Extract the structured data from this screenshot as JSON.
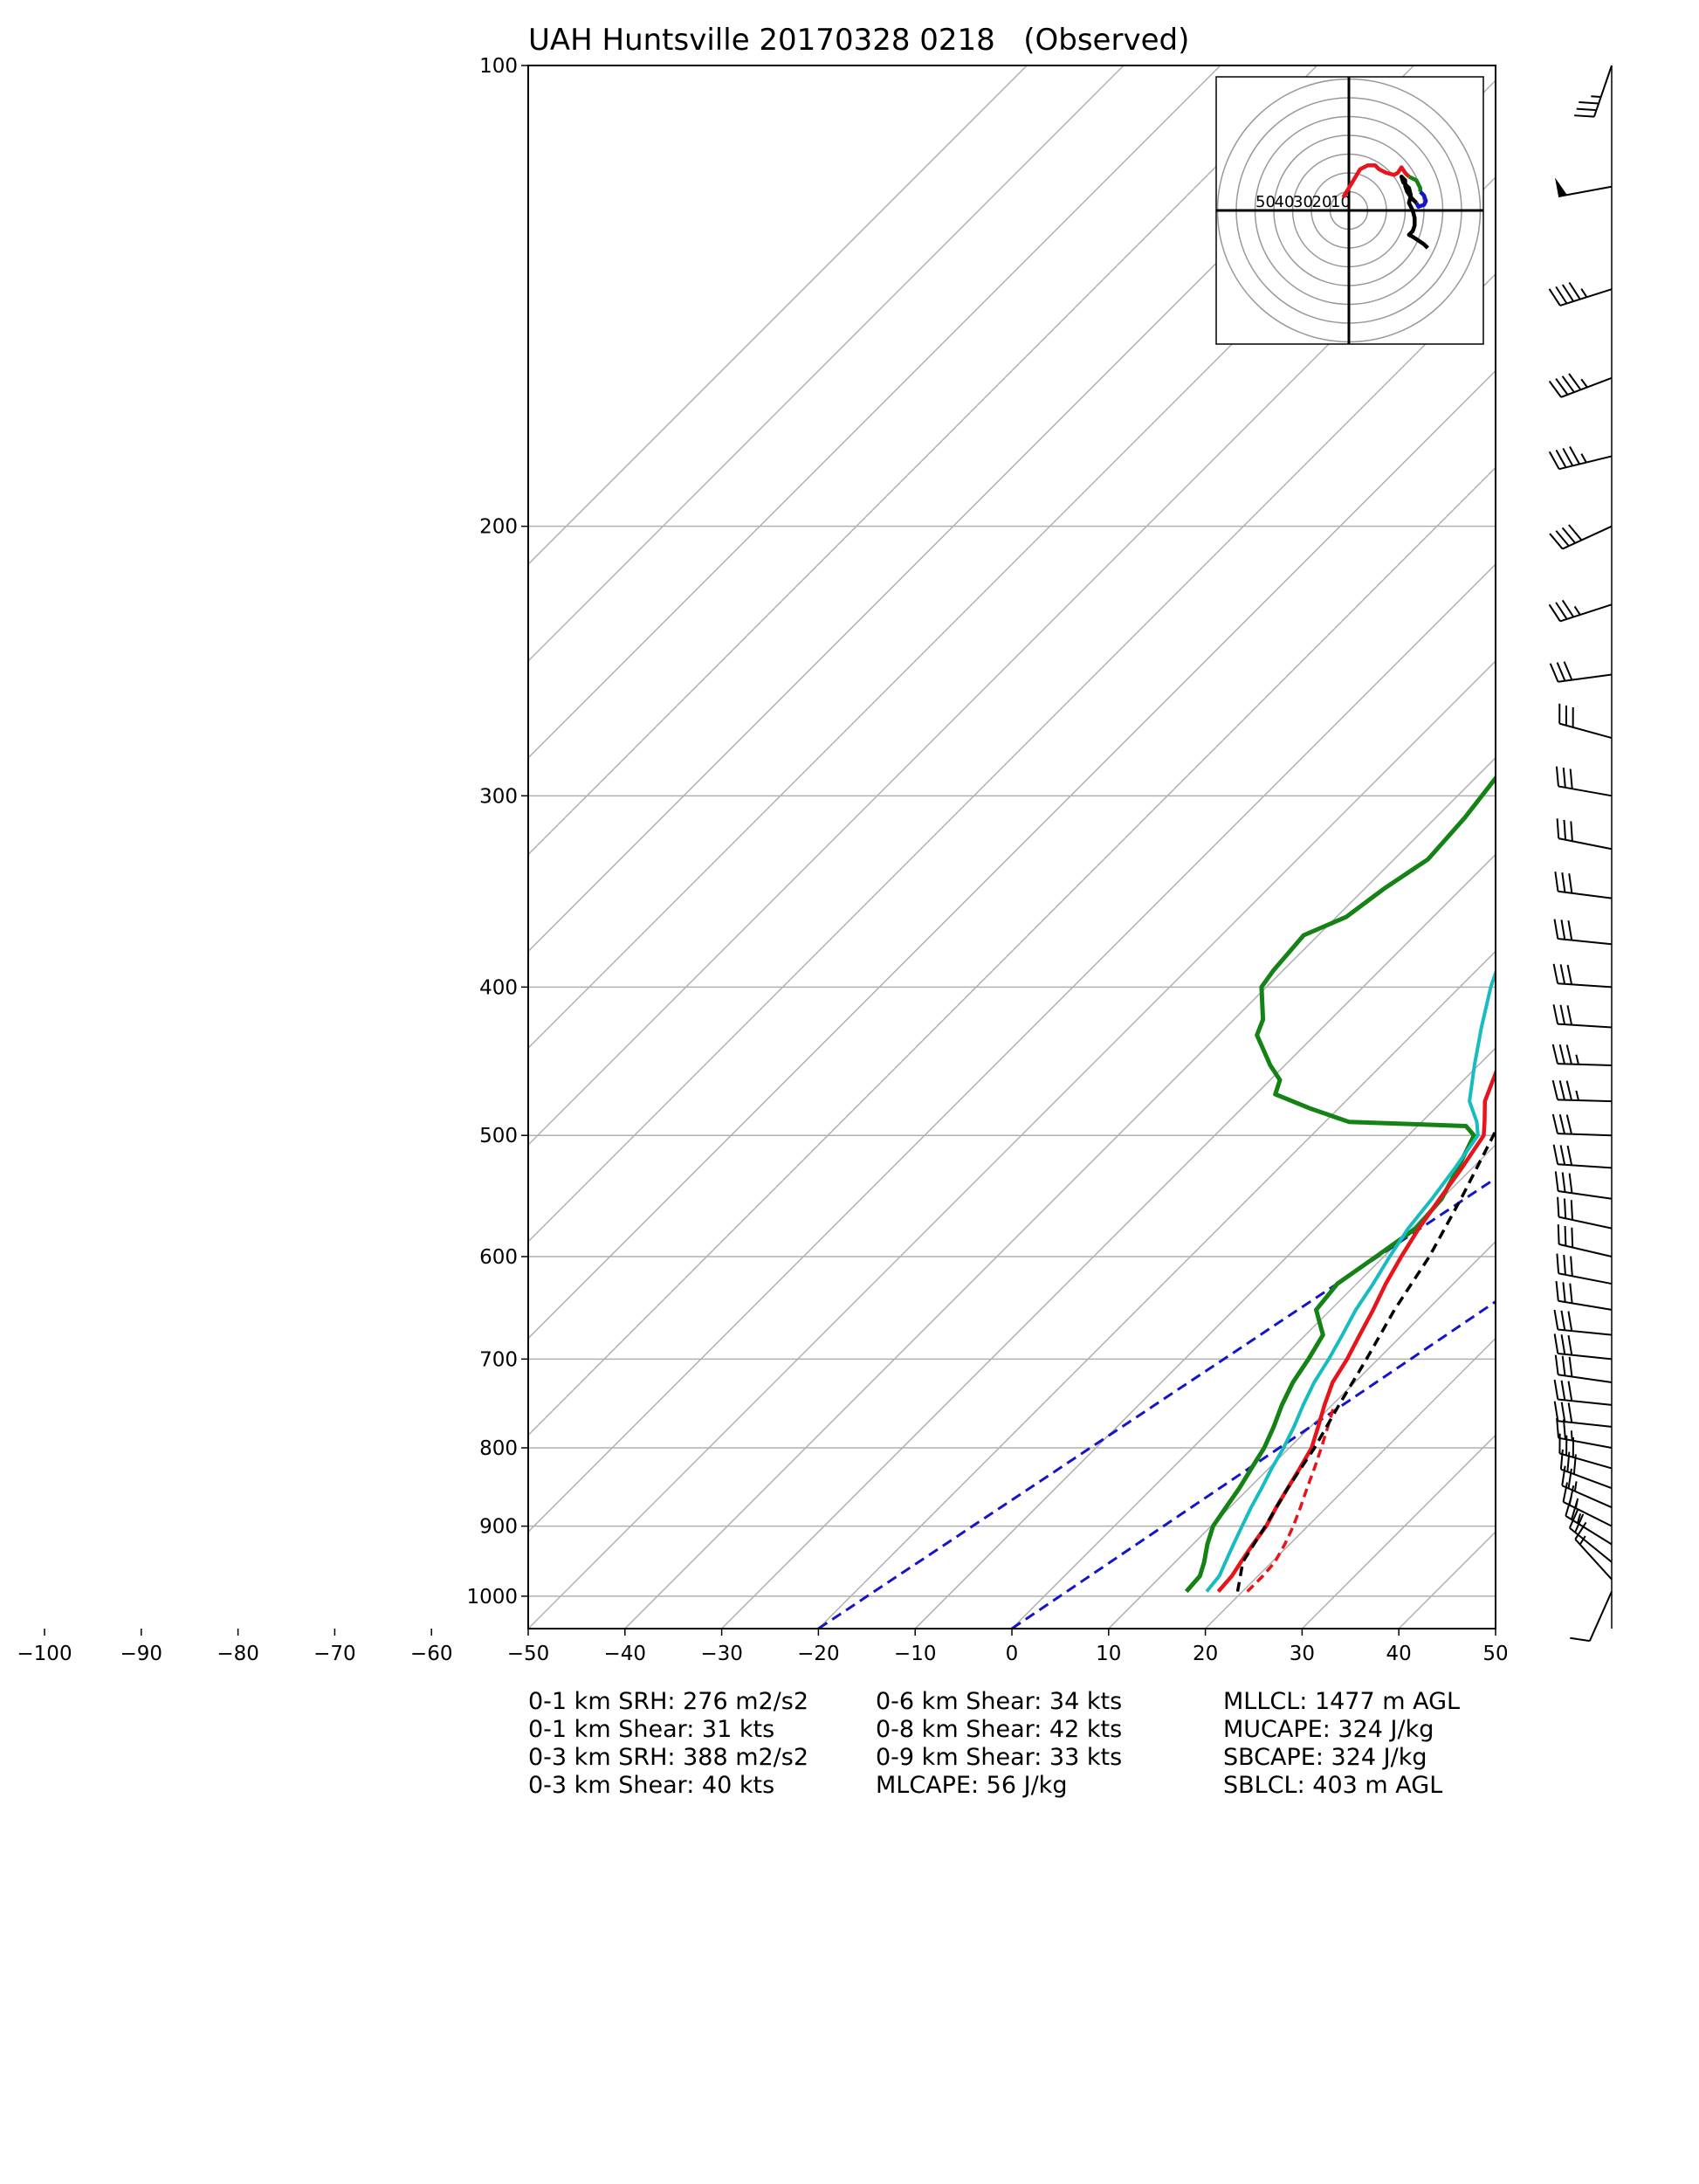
{
  "title": "UAH Huntsville 20170328 0218   (Observed)",
  "chart_data": {
    "type": "line",
    "subtype": "skew-T log-p sounding",
    "x_ticks": [
      -100,
      -90,
      -80,
      -70,
      -60,
      -50,
      -40,
      -30,
      -20,
      -10,
      0,
      10,
      20,
      30,
      40,
      50
    ],
    "y_ticks": [
      100,
      200,
      300,
      400,
      500,
      600,
      700,
      800,
      900,
      1000
    ],
    "xlim": [
      -50,
      50
    ],
    "ylim": [
      1050,
      100
    ],
    "y_scale": "log",
    "grid": true,
    "colors": {
      "temperature": "#e8141b",
      "dewpoint": "#148214",
      "wetbulb": "#17bcc0",
      "parcel": "#000000",
      "dry_adiabat_reference": "#1515c8",
      "isotherm": "#b0b0b0"
    },
    "series": [
      {
        "key": "temperature",
        "style": "solid",
        "points": [
          [
            993,
            17.5
          ],
          [
            970,
            17.3
          ],
          [
            950,
            16.8
          ],
          [
            925,
            16.2
          ],
          [
            900,
            15.7
          ],
          [
            875,
            14.8
          ],
          [
            850,
            14.0
          ],
          [
            825,
            13.2
          ],
          [
            800,
            12.3
          ],
          [
            775,
            10.8
          ],
          [
            750,
            9.2
          ],
          [
            725,
            7.7
          ],
          [
            700,
            6.8
          ],
          [
            675,
            5.6
          ],
          [
            650,
            4.4
          ],
          [
            625,
            3.0
          ],
          [
            600,
            1.8
          ],
          [
            575,
            0.7
          ],
          [
            550,
            -0.2
          ],
          [
            525,
            -1.1
          ],
          [
            500,
            -2.2
          ],
          [
            490,
            -3.5
          ],
          [
            475,
            -5.6
          ],
          [
            450,
            -7.9
          ],
          [
            425,
            -10.8
          ],
          [
            400,
            -14.1
          ],
          [
            375,
            -17.4
          ],
          [
            350,
            -20.5
          ],
          [
            325,
            -23.6
          ],
          [
            300,
            -27.6
          ],
          [
            275,
            -31.6
          ],
          [
            250,
            -35.4
          ],
          [
            225,
            -40.3
          ],
          [
            200,
            -45.0
          ],
          [
            190,
            -46.2
          ],
          [
            180,
            -49.0
          ],
          [
            170,
            -51.3
          ],
          [
            160,
            -53.2
          ],
          [
            150,
            -54.3
          ],
          [
            140,
            -55.7
          ],
          [
            130,
            -56.0
          ],
          [
            120,
            -56.4
          ],
          [
            110,
            -58.0
          ],
          [
            100,
            -59.4
          ]
        ]
      },
      {
        "key": "temperature_virtual",
        "style": "dashed",
        "points": [
          [
            993,
            20.5
          ],
          [
            970,
            20.5
          ],
          [
            950,
            20.3
          ],
          [
            925,
            19.5
          ],
          [
            900,
            18.5
          ],
          [
            875,
            17.3
          ],
          [
            850,
            16.0
          ],
          [
            825,
            14.7
          ],
          [
            800,
            13.3
          ],
          [
            775,
            11.8
          ],
          [
            750,
            10.2
          ]
        ]
      },
      {
        "key": "dewpoint",
        "style": "solid",
        "points": [
          [
            993,
            14.2
          ],
          [
            970,
            14.0
          ],
          [
            950,
            13.0
          ],
          [
            925,
            11.5
          ],
          [
            900,
            10.2
          ],
          [
            875,
            9.6
          ],
          [
            850,
            9.0
          ],
          [
            825,
            8.2
          ],
          [
            800,
            7.4
          ],
          [
            775,
            6.2
          ],
          [
            750,
            4.8
          ],
          [
            725,
            3.6
          ],
          [
            700,
            2.8
          ],
          [
            675,
            1.8
          ],
          [
            650,
            -1.5
          ],
          [
            625,
            -2.0
          ],
          [
            600,
            -0.8
          ],
          [
            575,
            0.4
          ],
          [
            550,
            0.0
          ],
          [
            525,
            -1.5
          ],
          [
            500,
            -3.2
          ],
          [
            493,
            -5.0
          ],
          [
            490,
            -17.5
          ],
          [
            480,
            -23.0
          ],
          [
            470,
            -28.0
          ],
          [
            460,
            -29.0
          ],
          [
            450,
            -31.5
          ],
          [
            430,
            -36.0
          ],
          [
            420,
            -37.0
          ],
          [
            400,
            -40.5
          ],
          [
            390,
            -41.0
          ],
          [
            370,
            -41.5
          ],
          [
            360,
            -39.0
          ],
          [
            345,
            -38.0
          ],
          [
            330,
            -36.5
          ],
          [
            310,
            -37.0
          ],
          [
            290,
            -38.0
          ],
          [
            270,
            -41.0
          ],
          [
            250,
            -45.5
          ],
          [
            225,
            -49.5
          ],
          [
            210,
            -50.5
          ],
          [
            200,
            -52.0
          ],
          [
            195,
            -51.0
          ],
          [
            190,
            -48.0
          ],
          [
            185,
            -45.0
          ],
          [
            180,
            -43.5
          ],
          [
            170,
            -45.0
          ],
          [
            160,
            -46.5
          ],
          [
            150,
            -49.0
          ],
          [
            140,
            -52.0
          ],
          [
            130,
            -56.0
          ],
          [
            120,
            -57.0
          ],
          [
            110,
            -60.5
          ],
          [
            100,
            -61.0
          ]
        ]
      },
      {
        "key": "wetbulb",
        "style": "solid",
        "points": [
          [
            993,
            16.3
          ],
          [
            970,
            16.0
          ],
          [
            950,
            15.2
          ],
          [
            925,
            14.2
          ],
          [
            900,
            13.2
          ],
          [
            875,
            12.2
          ],
          [
            850,
            11.3
          ],
          [
            825,
            10.3
          ],
          [
            800,
            9.4
          ],
          [
            775,
            8.3
          ],
          [
            750,
            7.0
          ],
          [
            725,
            5.8
          ],
          [
            700,
            4.9
          ],
          [
            675,
            3.8
          ],
          [
            650,
            2.6
          ],
          [
            625,
            1.7
          ],
          [
            600,
            0.6
          ],
          [
            575,
            -0.4
          ],
          [
            550,
            -1.0
          ],
          [
            525,
            -1.8
          ],
          [
            500,
            -2.8
          ],
          [
            490,
            -4.3
          ],
          [
            475,
            -7.2
          ],
          [
            450,
            -10.4
          ],
          [
            425,
            -13.6
          ],
          [
            400,
            -16.8
          ],
          [
            375,
            -19.7
          ],
          [
            350,
            -22.0
          ],
          [
            325,
            -24.8
          ],
          [
            300,
            -28.0
          ],
          [
            275,
            -31.8
          ],
          [
            250,
            -35.6
          ],
          [
            225,
            -40.5
          ],
          [
            200,
            -45.2
          ],
          [
            190,
            -46.4
          ],
          [
            180,
            -49.2
          ],
          [
            170,
            -51.5
          ],
          [
            160,
            -53.4
          ],
          [
            150,
            -54.6
          ],
          [
            140,
            -56.0
          ],
          [
            130,
            -56.3
          ],
          [
            120,
            -56.8
          ],
          [
            110,
            -58.3
          ],
          [
            100,
            -59.8
          ]
        ]
      },
      {
        "key": "parcel",
        "style": "dashed",
        "points": [
          [
            993,
            19.5
          ],
          [
            950,
            17.0
          ],
          [
            900,
            15.6
          ],
          [
            850,
            14.0
          ],
          [
            800,
            12.6
          ],
          [
            750,
            10.7
          ],
          [
            700,
            8.8
          ],
          [
            650,
            6.6
          ],
          [
            600,
            4.7
          ],
          [
            550,
            2.0
          ],
          [
            500,
            -1.2
          ],
          [
            450,
            -5.1
          ],
          [
            400,
            -9.9
          ],
          [
            350,
            -15.9
          ],
          [
            300,
            -23.6
          ],
          [
            250,
            -33.6
          ],
          [
            200,
            -46.0
          ],
          [
            150,
            -60.5
          ],
          [
            120,
            -69.0
          ]
        ]
      },
      {
        "key": "reference_lines",
        "style": "dashed",
        "lines": [
          [
            [
              1050,
              -20
            ],
            [
              100,
              61.5
            ]
          ],
          [
            [
              1050,
              0
            ],
            [
              100,
              77.5
            ]
          ]
        ]
      }
    ],
    "hodograph": {
      "rings": [
        10,
        20,
        30,
        40,
        50,
        60,
        70
      ],
      "ring_labels": [
        "50",
        "40",
        "30",
        "20",
        "10"
      ],
      "segments": [
        {
          "key": "0-1km",
          "color": "#e8141b",
          "points": [
            [
              -3,
              7
            ],
            [
              0,
              12
            ],
            [
              3,
              17
            ],
            [
              6,
              22
            ],
            [
              10,
              24
            ],
            [
              14,
              24
            ],
            [
              16,
              22
            ],
            [
              20,
              20
            ],
            [
              24,
              19
            ],
            [
              26,
              20
            ],
            [
              28,
              23
            ],
            [
              30,
              20
            ],
            [
              32,
              18
            ]
          ]
        },
        {
          "key": "1-3km",
          "color": "#148214",
          "points": [
            [
              32,
              18
            ],
            [
              34,
              17
            ],
            [
              36,
              16
            ],
            [
              37,
              14
            ],
            [
              38,
              12
            ],
            [
              38,
              10
            ]
          ]
        },
        {
          "key": "3-6km",
          "color": "#1515c8",
          "points": [
            [
              38,
              10
            ],
            [
              40,
              8
            ],
            [
              41,
              5
            ],
            [
              40,
              3
            ],
            [
              37,
              2
            ],
            [
              36,
              4
            ]
          ]
        },
        {
          "key": "6-12km",
          "color": "#000000",
          "points": [
            [
              36,
              4
            ],
            [
              33,
              7
            ],
            [
              31,
              10
            ],
            [
              30,
              13
            ],
            [
              30,
              16
            ],
            [
              28,
              18
            ],
            [
              29,
              15
            ],
            [
              32,
              12
            ],
            [
              33,
              8
            ],
            [
              32,
              4
            ],
            [
              34,
              0
            ],
            [
              35,
              -4
            ],
            [
              35,
              -8
            ],
            [
              34,
              -11
            ],
            [
              32,
              -13
            ],
            [
              34,
              -14
            ],
            [
              37,
              -16
            ],
            [
              40,
              -18
            ],
            [
              42,
              -20
            ]
          ]
        }
      ]
    },
    "wind_barbs": [
      {
        "p": 100,
        "u": 12,
        "v": 35
      },
      {
        "p": 120,
        "u": 49,
        "v": 9
      },
      {
        "p": 140,
        "u": 44,
        "v": 14
      },
      {
        "p": 160,
        "u": 42,
        "v": 16
      },
      {
        "p": 180,
        "u": 45,
        "v": 11
      },
      {
        "p": 200,
        "u": 37,
        "v": 17
      },
      {
        "p": 225,
        "u": 34,
        "v": 11
      },
      {
        "p": 250,
        "u": 30,
        "v": 4
      },
      {
        "p": 275,
        "u": 29,
        "v": -8
      },
      {
        "p": 300,
        "u": 28,
        "v": -5
      },
      {
        "p": 325,
        "u": 30,
        "v": -6
      },
      {
        "p": 350,
        "u": 31,
        "v": -4
      },
      {
        "p": 375,
        "u": 30,
        "v": -3
      },
      {
        "p": 400,
        "u": 30,
        "v": -2
      },
      {
        "p": 425,
        "u": 32,
        "v": -2
      },
      {
        "p": 450,
        "u": 33,
        "v": -1
      },
      {
        "p": 475,
        "u": 34,
        "v": -1
      },
      {
        "p": 500,
        "u": 30,
        "v": -1
      },
      {
        "p": 525,
        "u": 30,
        "v": -2
      },
      {
        "p": 550,
        "u": 28,
        "v": -4
      },
      {
        "p": 575,
        "u": 28,
        "v": -6
      },
      {
        "p": 600,
        "u": 30,
        "v": -7
      },
      {
        "p": 625,
        "u": 31,
        "v": -6
      },
      {
        "p": 650,
        "u": 30,
        "v": -5
      },
      {
        "p": 675,
        "u": 30,
        "v": -3
      },
      {
        "p": 700,
        "u": 29,
        "v": -3
      },
      {
        "p": 725,
        "u": 28,
        "v": -4
      },
      {
        "p": 750,
        "u": 29,
        "v": -3
      },
      {
        "p": 775,
        "u": 28,
        "v": -3
      },
      {
        "p": 800,
        "u": 27,
        "v": -5
      },
      {
        "p": 825,
        "u": 28,
        "v": -8
      },
      {
        "p": 850,
        "u": 27,
        "v": -10
      },
      {
        "p": 875,
        "u": 25,
        "v": -11
      },
      {
        "p": 900,
        "u": 24,
        "v": -12
      },
      {
        "p": 925,
        "u": 21,
        "v": -13
      },
      {
        "p": 950,
        "u": 16,
        "v": -13
      },
      {
        "p": 975,
        "u": 10,
        "v": -11
      },
      {
        "p": 993,
        "u": 4,
        "v": 9
      }
    ]
  },
  "stats": {
    "col1": [
      "0-1 km SRH: 276 m2/s2",
      "0-1 km Shear: 31 kts",
      "0-3 km SRH: 388 m2/s2",
      "0-3 km Shear: 40 kts"
    ],
    "col2": [
      "0-6 km Shear: 34 kts",
      "0-8 km Shear: 42 kts",
      "0-9 km Shear: 33 kts",
      "MLCAPE: 56 J/kg"
    ],
    "col3": [
      "MLLCL: 1477 m AGL",
      "MUCAPE: 324 J/kg",
      "SBCAPE: 324 J/kg",
      "SBLCL: 403 m AGL"
    ]
  }
}
